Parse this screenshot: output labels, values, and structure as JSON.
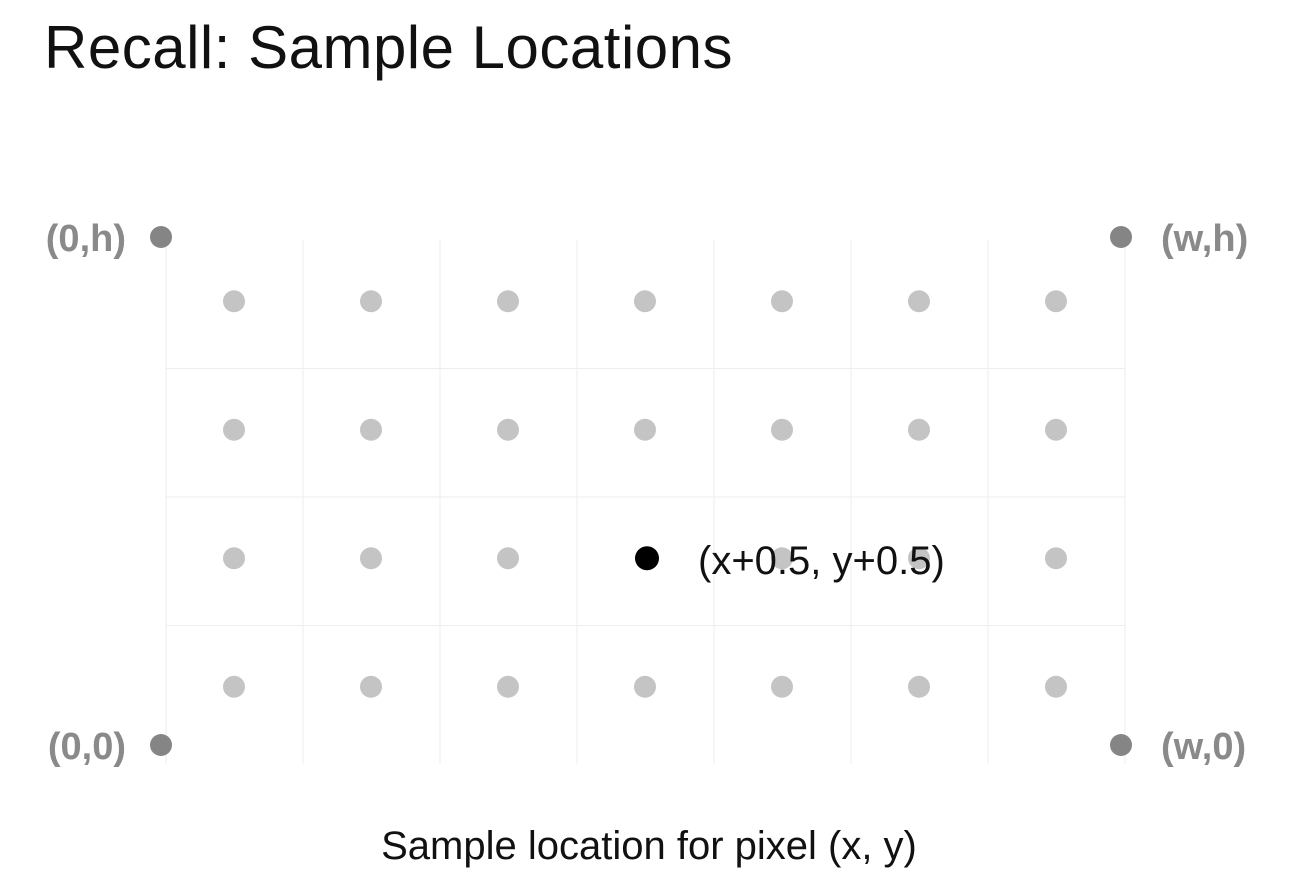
{
  "title": "Recall: Sample Locations",
  "caption": "Sample location for pixel (x, y)",
  "corners": {
    "top_left": "(0,h)",
    "top_right": "(w,h)",
    "bottom_left": "(0,0)",
    "bottom_right": "(w,0)"
  },
  "highlight_label": "(x+0.5, y+0.5)",
  "grid": {
    "columns": 7,
    "rows": 4,
    "highlight_col": 3,
    "highlight_row": 2
  },
  "colors": {
    "grid_line": "#eeeeee",
    "sample_point": "#c4c4c4",
    "highlight_point": "#000000",
    "corner_point": "#858585",
    "corner_label": "#8a8a8a"
  }
}
